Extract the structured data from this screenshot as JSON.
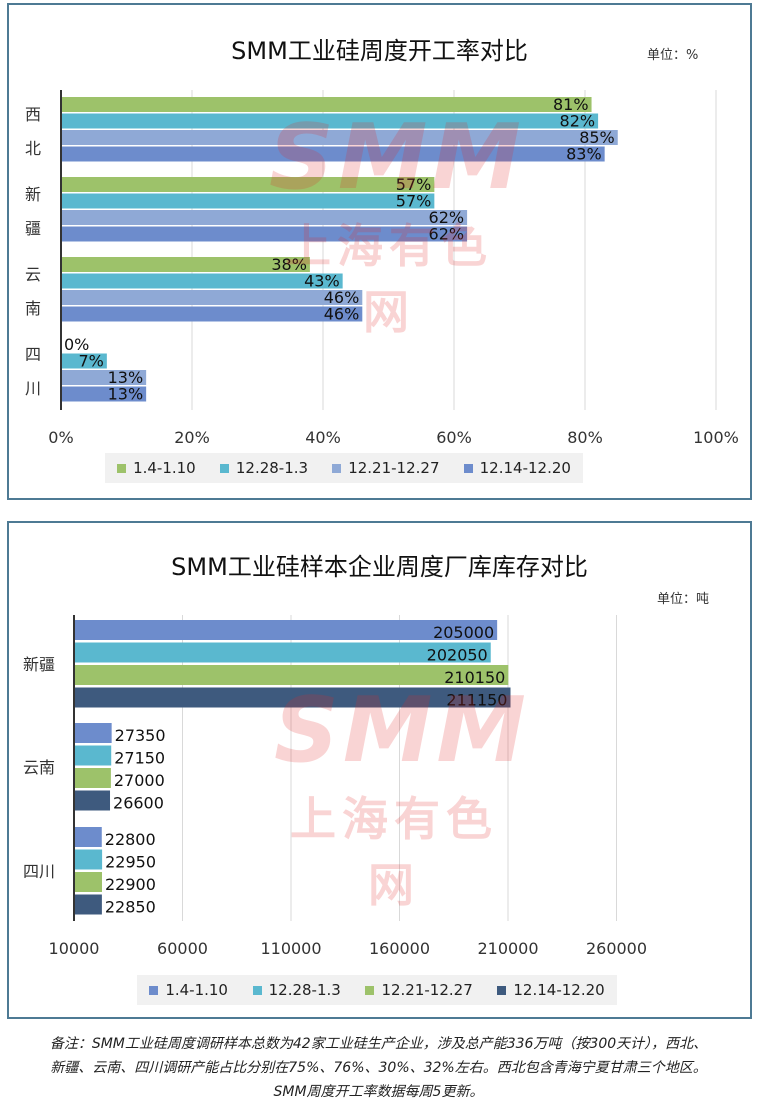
{
  "chart_data": [
    {
      "type": "bar",
      "orientation": "horizontal",
      "title": "SMM工业硅周度开工率对比",
      "unit_label": "单位：%",
      "categories": [
        "西北",
        "新疆",
        "云南",
        "四川"
      ],
      "series": [
        {
          "name": "1.4-1.10",
          "color": "#9dc26a",
          "values": [
            81,
            57,
            38,
            0
          ],
          "labels": [
            "81%",
            "57%",
            "38%",
            "0%"
          ]
        },
        {
          "name": "12.28-1.3",
          "color": "#5ab8cf",
          "values": [
            82,
            57,
            43,
            7
          ],
          "labels": [
            "82%",
            "57%",
            "43%",
            "7%"
          ]
        },
        {
          "name": "12.21-12.27",
          "color": "#8fa9d6",
          "values": [
            85,
            62,
            46,
            13
          ],
          "labels": [
            "85%",
            "62%",
            "46%",
            "13%"
          ]
        },
        {
          "name": "12.14-12.20",
          "color": "#6d8ccc",
          "values": [
            83,
            62,
            46,
            13
          ],
          "labels": [
            "83%",
            "62%",
            "46%",
            "13%"
          ]
        }
      ],
      "xlim": [
        0,
        100
      ],
      "xticks": [
        "0%",
        "20%",
        "40%",
        "60%",
        "80%",
        "100%"
      ],
      "xtick_values": [
        0,
        20,
        40,
        60,
        80,
        100
      ],
      "grid": "vertical",
      "legend": "bottom"
    },
    {
      "type": "bar",
      "orientation": "horizontal",
      "title": "SMM工业硅样本企业周度厂库库存对比",
      "unit_label": "单位：吨",
      "categories": [
        "新疆",
        "云南",
        "四川"
      ],
      "series": [
        {
          "name": "1.4-1.10",
          "color": "#6d8ccc",
          "values": [
            205000,
            27350,
            22800
          ],
          "labels": [
            "205000",
            "27350",
            "22800"
          ]
        },
        {
          "name": "12.28-1.3",
          "color": "#5ab8cf",
          "values": [
            202050,
            27150,
            22950
          ],
          "labels": [
            "202050",
            "27150",
            "22950"
          ]
        },
        {
          "name": "12.21-12.27",
          "color": "#9dc26a",
          "values": [
            210150,
            27000,
            22900
          ],
          "labels": [
            "210150",
            "27000",
            "22900"
          ]
        },
        {
          "name": "12.14-12.20",
          "color": "#3e5a7e",
          "values": [
            211150,
            26600,
            22850
          ],
          "labels": [
            "211150",
            "26600",
            "22850"
          ]
        }
      ],
      "xlim": [
        10000,
        310000
      ],
      "xticks": [
        "10000",
        "60000",
        "110000",
        "160000",
        "210000",
        "260000"
      ],
      "xtick_values": [
        10000,
        60000,
        110000,
        160000,
        210000,
        260000
      ],
      "grid": "vertical",
      "legend": "bottom"
    }
  ],
  "watermark": {
    "brand": "SMM",
    "text": "上海有色网"
  },
  "note": {
    "line1": "备注：SMM工业硅周度调研样本总数为42家工业硅生产企业，涉及总产能336万吨（按300天计），西北、",
    "line2": "新疆、云南、四川调研产能占比分别在75%、76%、30%、32%左右。西北包含青海宁夏甘肃三个地区。",
    "line3": "SMM周度开工率数据每周5更新。"
  }
}
